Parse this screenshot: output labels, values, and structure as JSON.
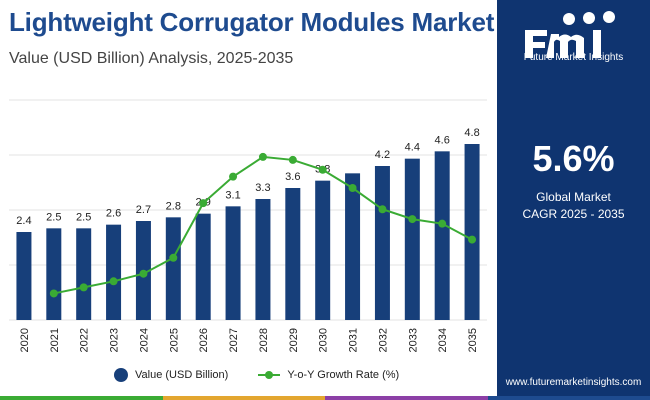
{
  "title": "Lightweight Corrugator Modules Market",
  "subtitle": "Value (USD Billion) Analysis, 2025-2035",
  "sidebar": {
    "logo_text": "Future Market Insights",
    "cagr_value": "5.6%",
    "cagr_line1": "Global Market",
    "cagr_line2": "CAGR 2025 - 2035",
    "website": "www.futuremarketinsights.com"
  },
  "colors": {
    "bar": "#173f7a",
    "line": "#3aab34",
    "title": "#1e4b8f",
    "sidebar": "#0f3470",
    "bottom_strip": [
      "#3aab34",
      "#e3a62f",
      "#8c3fa6",
      "#1e4b8f"
    ]
  },
  "chart_data": {
    "type": "bar+line",
    "categories": [
      "2020",
      "2021",
      "2022",
      "2023",
      "2024",
      "2025",
      "2026",
      "2027",
      "2028",
      "2029",
      "2030",
      "2031",
      "2032",
      "2033",
      "2034",
      "2035"
    ],
    "series": [
      {
        "name": "Value (USD Billion)",
        "type": "bar",
        "values": [
          2.4,
          2.5,
          2.5,
          2.6,
          2.7,
          2.8,
          2.9,
          3.1,
          3.3,
          3.6,
          3.8,
          4.0,
          4.2,
          4.4,
          4.6,
          4.8
        ],
        "labels": [
          "2.4",
          "2.5",
          "2.5",
          "2.6",
          "2.7",
          "2.8",
          "2.9",
          "3.1",
          "3.3",
          "3.6",
          "3.8",
          "",
          "4.2",
          "4.4",
          "4.6",
          "4.8"
        ]
      },
      {
        "name": "Y-o-Y Growth Rate (%)",
        "type": "line",
        "x": [
          "2021",
          "2022",
          "2023",
          "2024",
          "2025",
          "2026",
          "2027",
          "2028",
          "2029",
          "2030",
          "2031",
          "2032",
          "2033",
          "2034",
          "2035"
        ],
        "values": [
          0.5,
          1.3,
          2.1,
          3.1,
          5.2,
          12.4,
          15.9,
          18.5,
          18.1,
          16.8,
          14.4,
          11.6,
          10.3,
          9.7,
          7.6
        ]
      }
    ],
    "bar_ylim": [
      0,
      6
    ],
    "line_ylim": [
      -3,
      26
    ],
    "grid": "horizontal",
    "legend_position": "bottom"
  }
}
